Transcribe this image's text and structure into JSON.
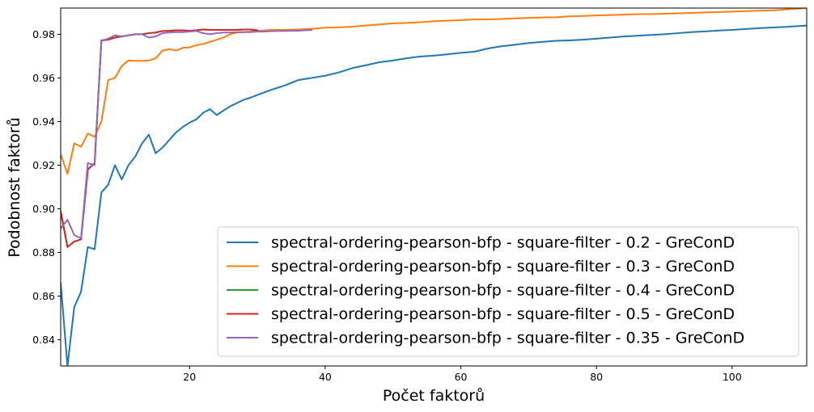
{
  "chart_data": {
    "type": "line",
    "xlabel": "Počet faktorů",
    "ylabel": "Podobnost faktorů",
    "xlim": [
      1,
      111
    ],
    "ylim": [
      0.828,
      0.992
    ],
    "xticks": [
      20,
      40,
      60,
      80,
      100
    ],
    "yticks": [
      0.84,
      0.86,
      0.88,
      0.9,
      0.92,
      0.94,
      0.96,
      0.98
    ],
    "xtick_labels": [
      "20",
      "40",
      "60",
      "80",
      "100"
    ],
    "ytick_labels": [
      "0.84",
      "0.86",
      "0.88",
      "0.90",
      "0.92",
      "0.94",
      "0.96",
      "0.98"
    ],
    "grid": false,
    "legend_position": "lower-right",
    "series": [
      {
        "name": "spectral-ordering-pearson-bfp - square-filter - 0.2 - GreConD",
        "color": "#1f77b4",
        "x": [
          1,
          2,
          3,
          4,
          5,
          6,
          7,
          8,
          9,
          10,
          11,
          12,
          13,
          14,
          15,
          16,
          17,
          18,
          19,
          20,
          21,
          22,
          23,
          24,
          25,
          26,
          27,
          28,
          29,
          30,
          32,
          34,
          36,
          38,
          40,
          42,
          44,
          46,
          48,
          50,
          52,
          54,
          56,
          58,
          60,
          62,
          64,
          66,
          68,
          70,
          72,
          74,
          76,
          78,
          80,
          82,
          84,
          86,
          88,
          90,
          92,
          94,
          96,
          98,
          100,
          102,
          104,
          106,
          108,
          110,
          111
        ],
        "y": [
          0.866,
          0.828,
          0.855,
          0.862,
          0.8825,
          0.8815,
          0.9075,
          0.911,
          0.92,
          0.9135,
          0.92,
          0.924,
          0.93,
          0.934,
          0.9255,
          0.928,
          0.9315,
          0.935,
          0.9375,
          0.9395,
          0.941,
          0.944,
          0.9457,
          0.943,
          0.945,
          0.947,
          0.9485,
          0.95,
          0.951,
          0.9522,
          0.9545,
          0.9565,
          0.959,
          0.96,
          0.961,
          0.9625,
          0.9645,
          0.9658,
          0.9672,
          0.968,
          0.969,
          0.9698,
          0.9702,
          0.9708,
          0.9715,
          0.972,
          0.9735,
          0.9745,
          0.9752,
          0.976,
          0.9765,
          0.977,
          0.9772,
          0.9775,
          0.978,
          0.9785,
          0.979,
          0.9793,
          0.9797,
          0.98,
          0.9805,
          0.981,
          0.9813,
          0.9817,
          0.982,
          0.9824,
          0.9828,
          0.9831,
          0.9834,
          0.9838,
          0.984
        ]
      },
      {
        "name": "spectral-ordering-pearson-bfp - square-filter - 0.3 - GreConD",
        "color": "#ff7f0e",
        "x": [
          1,
          2,
          3,
          4,
          5,
          6,
          7,
          8,
          9,
          10,
          11,
          12,
          13,
          14,
          15,
          16,
          17,
          18,
          19,
          20,
          21,
          22,
          23,
          24,
          25,
          26,
          27,
          28,
          30,
          32,
          34,
          36,
          38,
          40,
          42,
          44,
          46,
          48,
          50,
          52,
          54,
          56,
          58,
          60,
          62,
          64,
          66,
          68,
          70,
          72,
          74,
          76,
          78,
          80,
          82,
          84,
          86,
          88,
          90,
          92,
          94,
          96,
          98,
          100,
          102,
          104,
          106,
          108,
          110,
          111
        ],
        "y": [
          0.925,
          0.916,
          0.93,
          0.9285,
          0.9345,
          0.933,
          0.94,
          0.959,
          0.96,
          0.9655,
          0.968,
          0.9678,
          0.9678,
          0.968,
          0.969,
          0.9725,
          0.9732,
          0.9725,
          0.9738,
          0.974,
          0.975,
          0.9755,
          0.9765,
          0.9775,
          0.9785,
          0.98,
          0.9808,
          0.981,
          0.9815,
          0.982,
          0.982,
          0.9822,
          0.9825,
          0.983,
          0.9832,
          0.9835,
          0.984,
          0.9845,
          0.985,
          0.9852,
          0.9855,
          0.986,
          0.9862,
          0.9865,
          0.9868,
          0.9868,
          0.987,
          0.9873,
          0.9875,
          0.9877,
          0.9878,
          0.9882,
          0.9884,
          0.9886,
          0.9888,
          0.989,
          0.9892,
          0.9892,
          0.9894,
          0.9896,
          0.9898,
          0.99,
          0.9902,
          0.9904,
          0.9906,
          0.9908,
          0.991,
          0.9914,
          0.9918,
          0.992
        ]
      },
      {
        "name": "spectral-ordering-pearson-bfp - square-filter - 0.4 - GreConD",
        "color": "#2ca02c",
        "x": [
          1,
          2,
          3,
          4,
          5,
          6,
          7,
          8,
          9,
          10,
          11,
          12,
          13,
          14,
          15,
          16,
          17,
          18,
          19,
          20,
          21,
          22,
          23,
          24,
          25,
          26,
          27,
          28,
          29,
          30
        ],
        "y": [
          0.899,
          0.8825,
          0.885,
          0.886,
          0.918,
          0.921,
          0.9772,
          0.9775,
          0.9785,
          0.979,
          0.9795,
          0.98,
          0.98,
          0.9805,
          0.9808,
          0.9815,
          0.9816,
          0.9818,
          0.9818,
          0.9816,
          0.9818,
          0.9822,
          0.982,
          0.982,
          0.982,
          0.982,
          0.982,
          0.9822,
          0.9822,
          0.9818
        ]
      },
      {
        "name": "spectral-ordering-pearson-bfp - square-filter - 0.5 - GreConD",
        "color": "#d62728",
        "x": [
          1,
          2,
          3,
          4,
          5,
          6,
          7,
          8,
          9,
          10,
          11,
          12,
          13,
          14,
          15,
          16,
          17,
          18,
          19,
          20,
          21,
          22,
          23,
          24,
          25,
          26,
          27,
          28,
          29,
          30
        ],
        "y": [
          0.899,
          0.8825,
          0.885,
          0.886,
          0.918,
          0.921,
          0.9772,
          0.9775,
          0.9785,
          0.979,
          0.9795,
          0.98,
          0.98,
          0.9805,
          0.9808,
          0.9815,
          0.9816,
          0.9818,
          0.9818,
          0.9816,
          0.9818,
          0.9822,
          0.982,
          0.982,
          0.982,
          0.982,
          0.982,
          0.9822,
          0.9822,
          0.9818
        ]
      },
      {
        "name": "spectral-ordering-pearson-bfp - square-filter - 0.35 - GreConD",
        "color": "#9467bd",
        "x": [
          1,
          2,
          3,
          4,
          5,
          6,
          7,
          8,
          9,
          10,
          11,
          12,
          13,
          14,
          15,
          16,
          17,
          18,
          19,
          20,
          21,
          22,
          23,
          24,
          25,
          26,
          27,
          28,
          29,
          30,
          31,
          32,
          33,
          34,
          35,
          36,
          37,
          38
        ],
        "y": [
          0.891,
          0.895,
          0.888,
          0.8865,
          0.921,
          0.92,
          0.977,
          0.978,
          0.9795,
          0.979,
          0.9795,
          0.98,
          0.98,
          0.9785,
          0.979,
          0.9805,
          0.9808,
          0.981,
          0.981,
          0.9812,
          0.9815,
          0.9805,
          0.98,
          0.9805,
          0.9808,
          0.9808,
          0.981,
          0.981,
          0.981,
          0.9812,
          0.9812,
          0.9814,
          0.9815,
          0.9815,
          0.9816,
          0.9816,
          0.9818,
          0.982
        ]
      }
    ]
  }
}
